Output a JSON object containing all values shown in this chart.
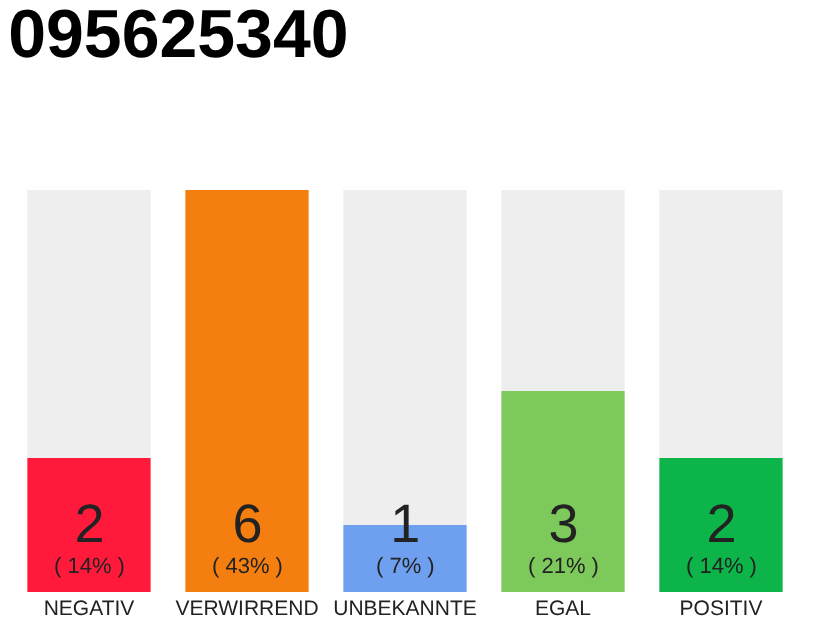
{
  "chart_data": {
    "type": "bar",
    "title": "095625340",
    "categories": [
      "NEGATIV",
      "VERWIRREND",
      "UNBEKANNTE",
      "EGAL",
      "POSITIV"
    ],
    "values": [
      2,
      6,
      1,
      3,
      2
    ],
    "colors": [
      "#ff1a3c",
      "#f47f10",
      "#6fa0ef",
      "#7ec95c",
      "#0db44a"
    ],
    "value_labels": [
      "2\n( 14% )",
      "6\n( 43% )",
      "1\n( 7% )",
      "3\n( 21% )",
      "2\n( 14% )"
    ],
    "ylim": [
      0,
      6
    ]
  }
}
